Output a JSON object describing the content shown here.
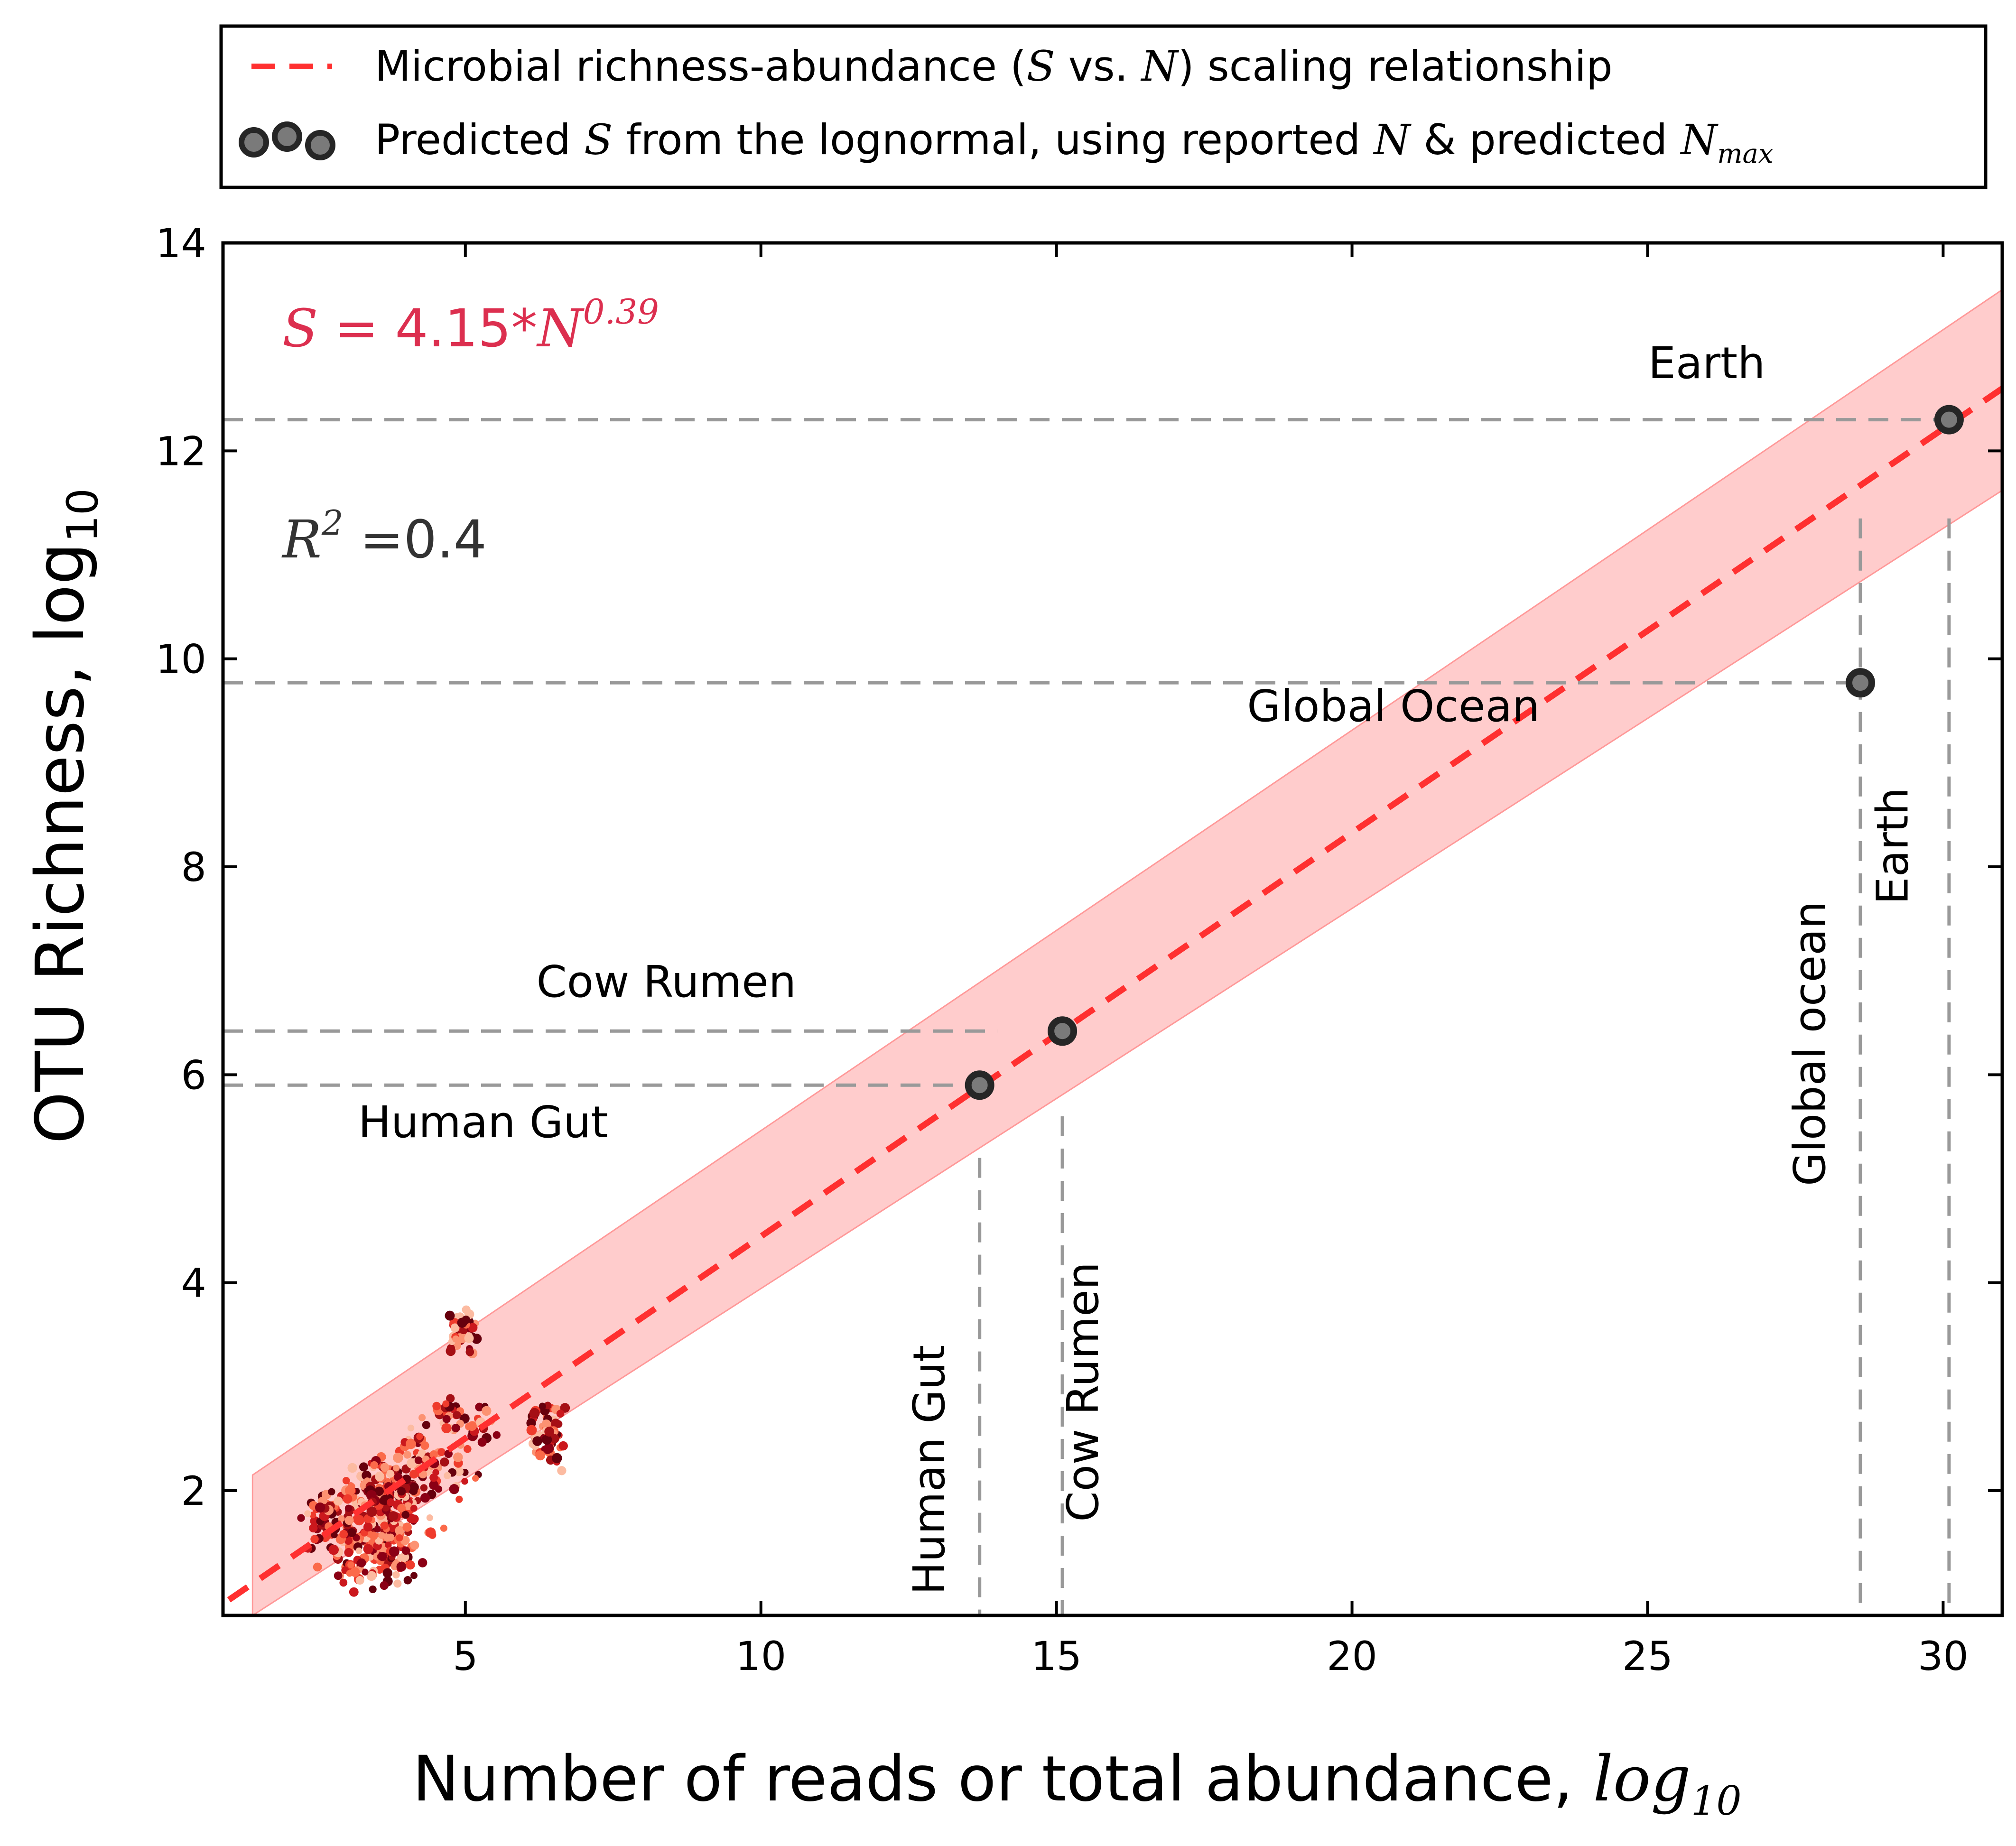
{
  "chart_data": {
    "type": "scatter",
    "xlabel": "Number of reads or total abundance,",
    "xlabel_math": "log",
    "xlabel_math_sub": "10",
    "ylabel": "OTU Richness, log",
    "ylabel_sub": "10",
    "xlim": [
      0.9,
      31.0
    ],
    "ylim": [
      0.8,
      14.0
    ],
    "x_ticks": [
      5,
      10,
      15,
      20,
      25,
      30
    ],
    "y_ticks": [
      2,
      4,
      6,
      8,
      10,
      12,
      14
    ],
    "grid": false,
    "legend": {
      "placement": "top (above plot)",
      "entries": [
        {
          "text": "Microbial richness-abundance (",
          "math1": "S",
          "mid": " vs. ",
          "math2": "N",
          "tail": ") scaling relationship",
          "style": "red dashed line"
        },
        {
          "text": "Predicted ",
          "math1": "S",
          "mid": " from the lognormal, using reported ",
          "math2": "N",
          "tail": " & predicted ",
          "math3": "N",
          "math3_sub": "max",
          "style": "grey circles"
        }
      ]
    },
    "equation": {
      "lhs": "S",
      "rhs": " = 4.15*",
      "base": "N",
      "exp": "0.39",
      "color": "#dc2f4f"
    },
    "r2": {
      "base": "R",
      "exp": "2",
      "text": " =0.4"
    },
    "fit_line": {
      "x": [
        1.0,
        31.0
      ],
      "y": [
        0.95,
        12.6
      ],
      "color": "#ff3030"
    },
    "band": {
      "x": [
        1.4,
        31.0
      ],
      "upper": [
        2.15,
        13.55
      ],
      "lower": [
        0.8,
        11.62
      ],
      "color": "#ff9999"
    },
    "predicted_points": [
      {
        "label": "Human Gut",
        "x": 13.7,
        "y": 5.9
      },
      {
        "label": "Cow Rumen",
        "x": 15.1,
        "y": 6.42
      },
      {
        "label": "Global Ocean",
        "x": 28.6,
        "y": 9.77
      },
      {
        "label": "Earth",
        "x": 30.1,
        "y": 12.3
      }
    ],
    "annotations": [
      {
        "text": "Earth",
        "x": 26.0,
        "y": 12.7,
        "orientation": "horizontal"
      },
      {
        "text": "Global Ocean",
        "x": 20.7,
        "y": 9.4,
        "orientation": "horizontal"
      },
      {
        "text": "Cow Rumen",
        "x": 8.4,
        "y": 6.75,
        "orientation": "horizontal"
      },
      {
        "text": "Human Gut",
        "x": 5.3,
        "y": 5.4,
        "orientation": "horizontal"
      },
      {
        "text": "Human Gut",
        "x": 13.1,
        "y": 2.2,
        "orientation": "vertical"
      },
      {
        "text": "Cow Rumen",
        "x": 15.7,
        "y": 2.95,
        "orientation": "vertical"
      },
      {
        "text": "Global ocean",
        "x": 28.0,
        "y": 6.3,
        "orientation": "vertical"
      },
      {
        "text": "Earth",
        "x": 29.4,
        "y": 8.2,
        "orientation": "vertical"
      }
    ],
    "clusters": [
      {
        "cx": 3.5,
        "cy": 1.45,
        "sx": 0.55,
        "sy": 0.28,
        "n": 170
      },
      {
        "cx": 3.6,
        "cy": 1.95,
        "sx": 0.55,
        "sy": 0.25,
        "n": 150
      },
      {
        "cx": 2.6,
        "cy": 1.75,
        "sx": 0.3,
        "sy": 0.22,
        "n": 50
      },
      {
        "cx": 4.4,
        "cy": 2.3,
        "sx": 0.55,
        "sy": 0.22,
        "n": 70
      },
      {
        "cx": 5.0,
        "cy": 2.65,
        "sx": 0.35,
        "sy": 0.15,
        "n": 40
      },
      {
        "cx": 6.4,
        "cy": 2.55,
        "sx": 0.22,
        "sy": 0.2,
        "n": 70
      },
      {
        "cx": 4.95,
        "cy": 3.55,
        "sx": 0.16,
        "sy": 0.15,
        "n": 45
      }
    ]
  }
}
